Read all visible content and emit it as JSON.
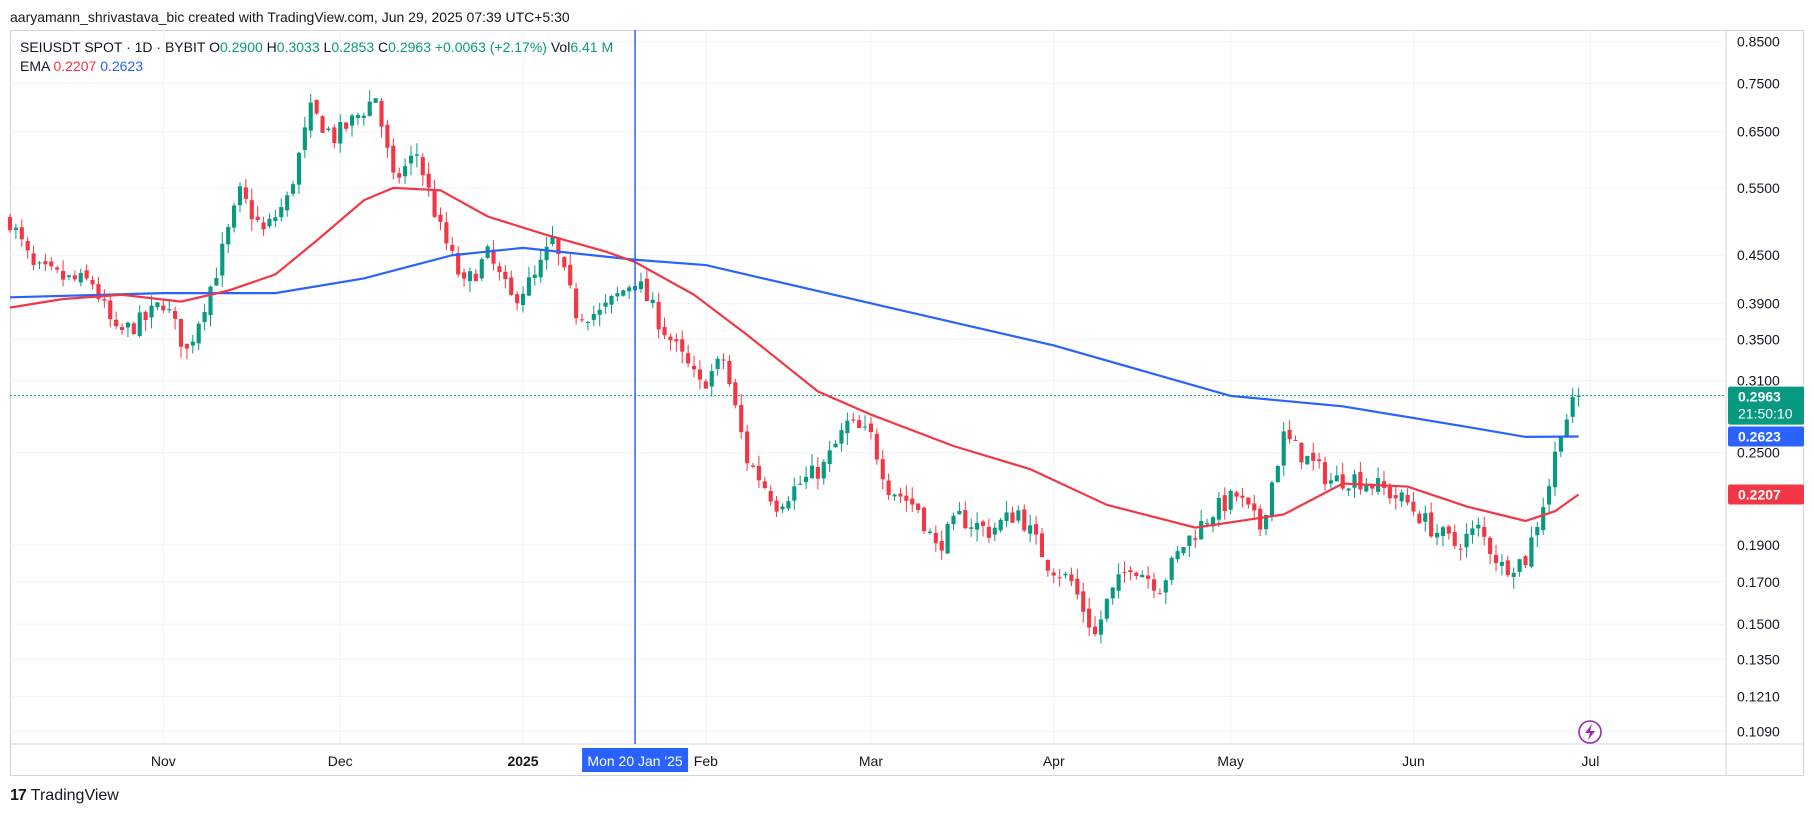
{
  "header": {
    "credit": "aaryamann_shrivastava_bic created with TradingView.com, Jun 29, 2025 07:39 UTC+5:30"
  },
  "legend": {
    "symbol": "SEIUSDT SPOT · 1D · BYBIT",
    "o_label": "O",
    "o": "0.2900",
    "h_label": "H",
    "h": "0.3033",
    "l_label": "L",
    "l": "0.2853",
    "c_label": "C",
    "c": "0.2963",
    "change": "+0.0063 (+2.17%)",
    "vol_label": "Vol",
    "vol": "6.41 M",
    "ema_label": "EMA",
    "ema_fast": "0.2207",
    "ema_slow": "0.2623"
  },
  "crosshair": {
    "date_label": "Mon 20 Jan '25"
  },
  "badges": {
    "last_price": "0.2963",
    "countdown": "21:50:10",
    "ema_slow": "0.2623",
    "ema_fast": "0.2207"
  },
  "footer": {
    "brand": "TradingView",
    "logo_text": "17"
  },
  "colors": {
    "up": "#089981",
    "down": "#f23645",
    "ema_fast": "#f23645",
    "ema_slow": "#2962ff",
    "crosshair": "#2962ff",
    "grid": "#f0f3fa",
    "axis": "#d1d4dc",
    "flash_icon": "#9c27b0"
  },
  "chart_data": {
    "type": "candlestick",
    "scale": "log",
    "grid": true,
    "ylim": [
      0.105,
      0.88
    ],
    "y_ticks": [
      "0.8500",
      "0.7500",
      "0.6500",
      "0.5500",
      "0.4500",
      "0.3900",
      "0.3500",
      "0.3100",
      "0.2500",
      "0.1900",
      "0.1700",
      "0.1500",
      "0.1350",
      "0.1210",
      "0.1090"
    ],
    "x_ticks": [
      "Nov",
      "Dec",
      "2025",
      "Feb",
      "Mar",
      "Apr",
      "May",
      "Jun",
      "Jul"
    ],
    "last_close": 0.2963,
    "close_path": [
      [
        "2024-10-06",
        0.5
      ],
      [
        "2024-10-10",
        0.432
      ],
      [
        "2024-10-16",
        0.418
      ],
      [
        "2024-10-20",
        0.415
      ],
      [
        "2024-10-24",
        0.355
      ],
      [
        "2024-10-29",
        0.372
      ],
      [
        "2024-11-01",
        0.392
      ],
      [
        "2024-11-05",
        0.338
      ],
      [
        "2024-11-10",
        0.43
      ],
      [
        "2024-11-14",
        0.54
      ],
      [
        "2024-11-18",
        0.482
      ],
      [
        "2024-11-22",
        0.53
      ],
      [
        "2024-11-26",
        0.69
      ],
      [
        "2024-11-30",
        0.64
      ],
      [
        "2024-12-03",
        0.67
      ],
      [
        "2024-12-07",
        0.722
      ],
      [
        "2024-12-10",
        0.56
      ],
      [
        "2024-12-14",
        0.61
      ],
      [
        "2024-12-18",
        0.485
      ],
      [
        "2024-12-22",
        0.41
      ],
      [
        "2024-12-26",
        0.45
      ],
      [
        "2024-12-30",
        0.395
      ],
      [
        "2025-01-03",
        0.42
      ],
      [
        "2025-01-06",
        0.47
      ],
      [
        "2025-01-10",
        0.38
      ],
      [
        "2025-01-14",
        0.378
      ],
      [
        "2025-01-20",
        0.42
      ],
      [
        "2025-01-25",
        0.36
      ],
      [
        "2025-01-31",
        0.305
      ],
      [
        "2025-02-04",
        0.33
      ],
      [
        "2025-02-08",
        0.245
      ],
      [
        "2025-02-13",
        0.215
      ],
      [
        "2025-02-17",
        0.228
      ],
      [
        "2025-02-21",
        0.24
      ],
      [
        "2025-02-25",
        0.272
      ],
      [
        "2025-03-01",
        0.262
      ],
      [
        "2025-03-04",
        0.226
      ],
      [
        "2025-03-09",
        0.212
      ],
      [
        "2025-03-12",
        0.188
      ],
      [
        "2025-03-16",
        0.206
      ],
      [
        "2025-03-21",
        0.198
      ],
      [
        "2025-03-26",
        0.21
      ],
      [
        "2025-03-31",
        0.18
      ],
      [
        "2025-04-04",
        0.17
      ],
      [
        "2025-04-08",
        0.145
      ],
      [
        "2025-04-10",
        0.16
      ],
      [
        "2025-04-14",
        0.18
      ],
      [
        "2025-04-19",
        0.168
      ],
      [
        "2025-04-23",
        0.19
      ],
      [
        "2025-04-28",
        0.21
      ],
      [
        "2025-05-02",
        0.22
      ],
      [
        "2025-05-06",
        0.2
      ],
      [
        "2025-05-10",
        0.262
      ],
      [
        "2025-05-14",
        0.245
      ],
      [
        "2025-05-18",
        0.23
      ],
      [
        "2025-05-22",
        0.232
      ],
      [
        "2025-05-26",
        0.226
      ],
      [
        "2025-05-31",
        0.215
      ],
      [
        "2025-06-04",
        0.2
      ],
      [
        "2025-06-08",
        0.19
      ],
      [
        "2025-06-12",
        0.199
      ],
      [
        "2025-06-16",
        0.178
      ],
      [
        "2025-06-20",
        0.182
      ],
      [
        "2025-06-24",
        0.228
      ],
      [
        "2025-06-26",
        0.27
      ],
      [
        "2025-06-29",
        0.296
      ]
    ],
    "series": [
      {
        "name": "EMA",
        "color": "#f23645",
        "points": [
          [
            "2024-10-06",
            0.385
          ],
          [
            "2024-10-15",
            0.395
          ],
          [
            "2024-10-25",
            0.4
          ],
          [
            "2024-11-04",
            0.392
          ],
          [
            "2024-11-12",
            0.405
          ],
          [
            "2024-11-20",
            0.425
          ],
          [
            "2024-11-27",
            0.47
          ],
          [
            "2024-12-05",
            0.53
          ],
          [
            "2024-12-10",
            0.55
          ],
          [
            "2024-12-18",
            0.546
          ],
          [
            "2024-12-26",
            0.505
          ],
          [
            "2025-01-05",
            0.478
          ],
          [
            "2025-01-15",
            0.455
          ],
          [
            "2025-01-20",
            0.441
          ],
          [
            "2025-01-30",
            0.4
          ],
          [
            "2025-02-08",
            0.355
          ],
          [
            "2025-02-20",
            0.3
          ],
          [
            "2025-03-01",
            0.28
          ],
          [
            "2025-03-15",
            0.255
          ],
          [
            "2025-03-28",
            0.238
          ],
          [
            "2025-04-10",
            0.214
          ],
          [
            "2025-04-25",
            0.2
          ],
          [
            "2025-05-10",
            0.208
          ],
          [
            "2025-05-20",
            0.228
          ],
          [
            "2025-05-31",
            0.226
          ],
          [
            "2025-06-10",
            0.213
          ],
          [
            "2025-06-20",
            0.204
          ],
          [
            "2025-06-25",
            0.21
          ],
          [
            "2025-06-29",
            0.2207
          ]
        ]
      },
      {
        "name": "EMA",
        "color": "#2962ff",
        "points": [
          [
            "2024-10-06",
            0.397
          ],
          [
            "2024-11-01",
            0.402
          ],
          [
            "2024-11-20",
            0.402
          ],
          [
            "2024-12-05",
            0.42
          ],
          [
            "2024-12-20",
            0.45
          ],
          [
            "2025-01-01",
            0.46
          ],
          [
            "2025-01-20",
            0.444
          ],
          [
            "2025-02-01",
            0.437
          ],
          [
            "2025-03-01",
            0.39
          ],
          [
            "2025-04-01",
            0.344
          ],
          [
            "2025-05-01",
            0.296
          ],
          [
            "2025-05-20",
            0.287
          ],
          [
            "2025-06-10",
            0.27
          ],
          [
            "2025-06-20",
            0.262
          ],
          [
            "2025-06-29",
            0.2623
          ]
        ]
      }
    ]
  }
}
